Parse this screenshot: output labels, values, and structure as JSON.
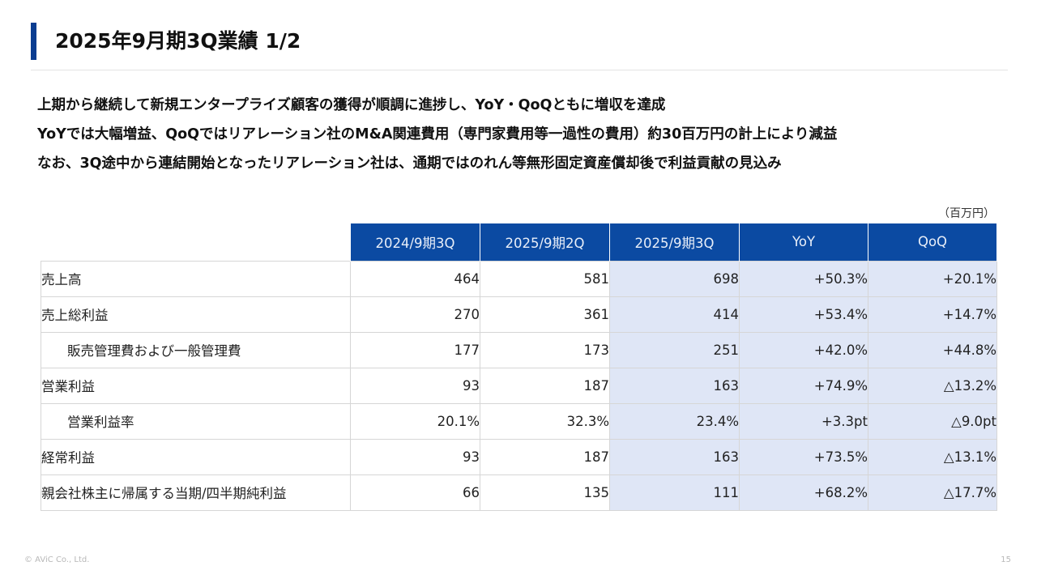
{
  "title": "2025年9月期3Q業績 1/2",
  "summary": [
    "上期から継続して新規エンタープライズ顧客の獲得が順調に進捗し、YoY・QoQともに増収を達成",
    "YoYでは大幅増益、QoQではリアレーション社のM&A関連費用（専門家費用等一過性の費用）約30百万円の計上により減益",
    "なお、3Q途中から連結開始となったリアレーション社は、通期ではのれん等無形固定資産償却後で利益貢献の見込み"
  ],
  "unit": "（百万円）",
  "table": {
    "headers": [
      "2024/9期3Q",
      "2025/9期2Q",
      "2025/9期3Q",
      "YoY",
      "QoQ"
    ],
    "rows": [
      {
        "label": "売上高",
        "cells": [
          "464",
          "581",
          "698",
          "+50.3%",
          "+20.1%"
        ]
      },
      {
        "label": "売上総利益",
        "cells": [
          "270",
          "361",
          "414",
          "+53.4%",
          "+14.7%"
        ]
      },
      {
        "label": "販売管理費および一般管理費",
        "cells": [
          "177",
          "173",
          "251",
          "+42.0%",
          "+44.8%"
        ]
      },
      {
        "label": "営業利益",
        "cells": [
          "93",
          "187",
          "163",
          "+74.9%",
          "△13.2%"
        ]
      },
      {
        "label": "営業利益率",
        "cells": [
          "20.1%",
          "32.3%",
          "23.4%",
          "+3.3pt",
          "△9.0pt"
        ]
      },
      {
        "label": "経常利益",
        "cells": [
          "93",
          "187",
          "163",
          "+73.5%",
          "△13.1%"
        ]
      },
      {
        "label": "親会社株主に帰属する当期/四半期純利益",
        "cells": [
          "66",
          "135",
          "111",
          "+68.2%",
          "△17.7%"
        ]
      }
    ]
  },
  "footer": {
    "copyright": "© AViC Co., Ltd.",
    "page_number": "15"
  }
}
